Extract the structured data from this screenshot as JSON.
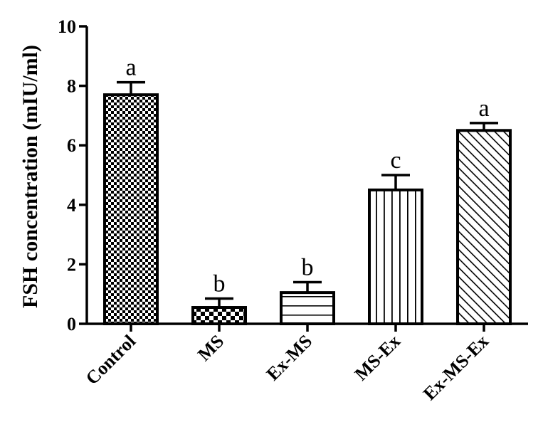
{
  "chart_data": {
    "type": "bar",
    "ylabel": "FSH concentration (mIU/ml)",
    "xlabel": "",
    "ylim": [
      0,
      10
    ],
    "yticks": [
      0,
      2,
      4,
      6,
      8,
      10
    ],
    "grid": false,
    "legend": "none",
    "categories": [
      "Control",
      "MS",
      "Ex-MS",
      "MS-Ex",
      "Ex-MS-Ex"
    ],
    "values": [
      7.7,
      0.55,
      1.05,
      4.5,
      6.5
    ],
    "errors": [
      0.42,
      0.3,
      0.35,
      0.5,
      0.25
    ],
    "significance_labels": [
      "a",
      "b",
      "b",
      "c",
      "a"
    ],
    "patterns": [
      "checker",
      "checker-coarse",
      "horizontal",
      "vertical",
      "diagonal"
    ],
    "bar_color": "#000000"
  }
}
